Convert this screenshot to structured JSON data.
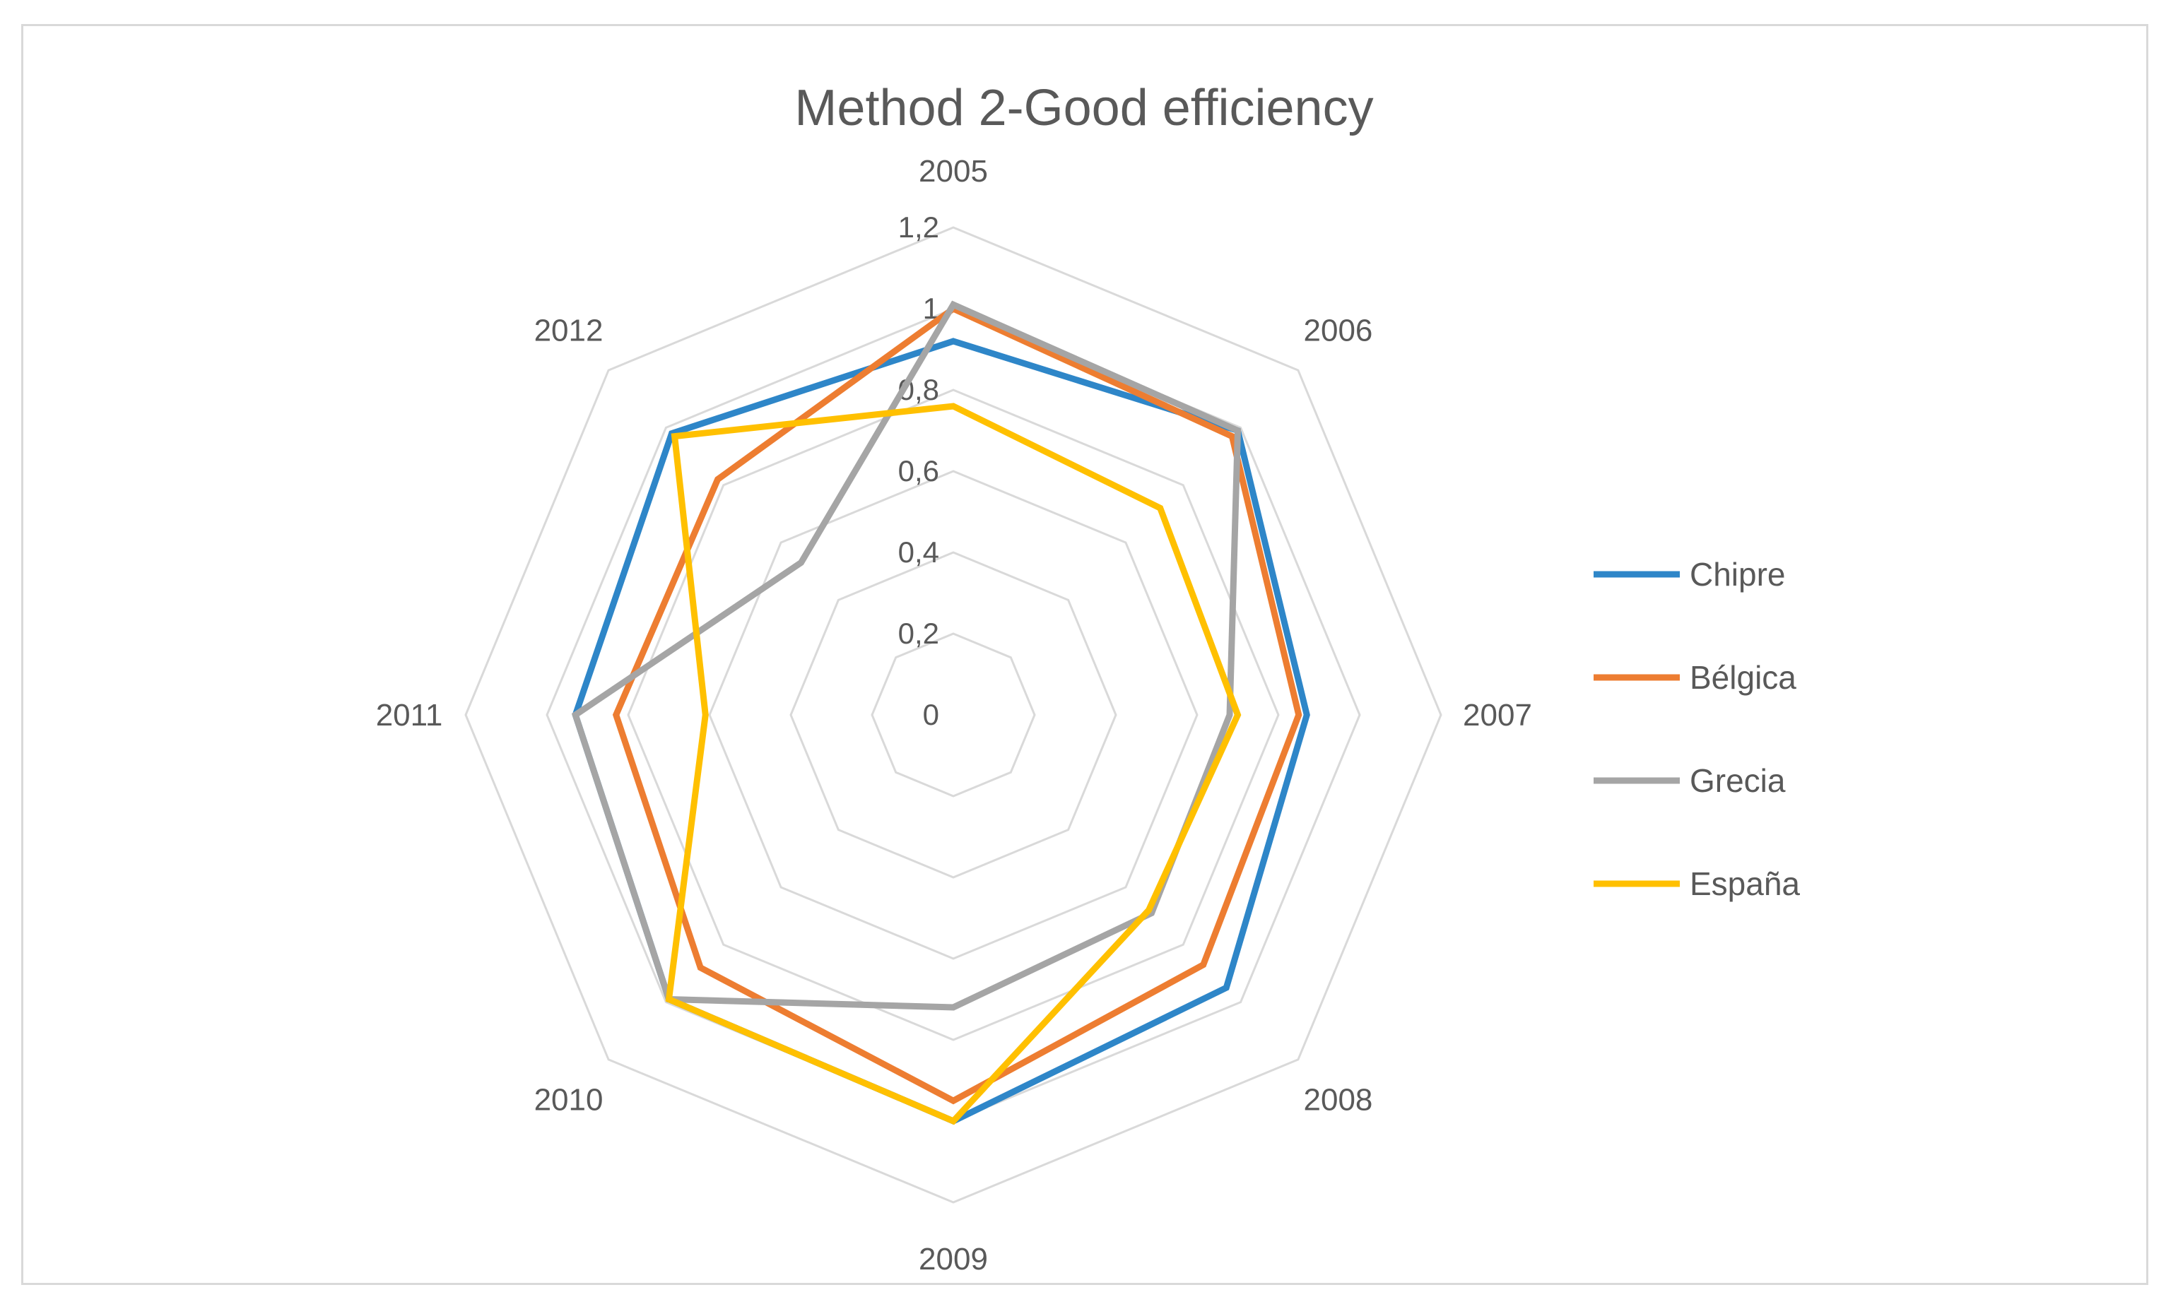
{
  "chart_data": {
    "type": "radar",
    "title": "Method 2-Good efficiency",
    "categories": [
      "2005",
      "2006",
      "2007",
      "2008",
      "2009",
      "2010",
      "2011",
      "2012"
    ],
    "radial_ticks": [
      "0",
      "0,2",
      "0,4",
      "0,6",
      "0,8",
      "1",
      "1,2"
    ],
    "rlim": [
      0,
      1.2
    ],
    "grid": true,
    "legend_position": "right",
    "series": [
      {
        "name": "Chipre",
        "color": "#2E86C8",
        "values": [
          0.92,
          0.99,
          0.87,
          0.95,
          1.0,
          0.99,
          0.93,
          0.98
        ]
      },
      {
        "name": "Bélgica",
        "color": "#ED7D31",
        "values": [
          1.0,
          0.97,
          0.85,
          0.87,
          0.95,
          0.88,
          0.83,
          0.82
        ]
      },
      {
        "name": "Grecia",
        "color": "#A5A5A5",
        "values": [
          1.01,
          0.99,
          0.68,
          0.69,
          0.72,
          0.99,
          0.93,
          0.53
        ]
      },
      {
        "name": "España",
        "color": "#FFC000",
        "values": [
          0.76,
          0.72,
          0.7,
          0.68,
          1.0,
          0.99,
          0.61,
          0.97
        ]
      }
    ]
  }
}
